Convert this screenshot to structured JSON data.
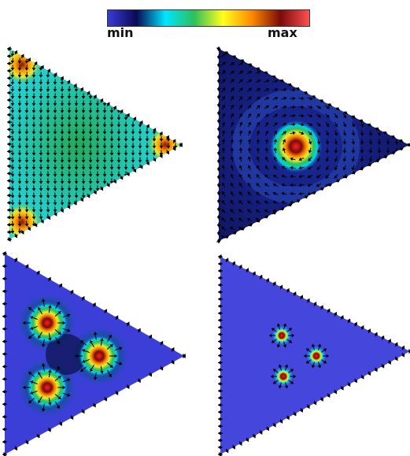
{
  "colorbar": {
    "min_label": "min",
    "max_label": "max",
    "stops": [
      "#3a3ad8",
      "#0a0a55",
      "#00e5ff",
      "#2fbf5a",
      "#ffff1e",
      "#ff8a00",
      "#7a0a0a",
      "#ff5050"
    ]
  },
  "panels": [
    {
      "id": "p1",
      "background": "#2ad3e0",
      "vortices": "three-corner",
      "field": "uniform-vertical-arrows"
    },
    {
      "id": "p2",
      "background": "#151870",
      "vortices": "single-central",
      "field": "swirl-arrows"
    },
    {
      "id": "p3",
      "background": "#3b3fd8",
      "vortices": "three-lobes",
      "field": "edge-arrows"
    },
    {
      "id": "p4",
      "background": "#4547dc",
      "vortices": "three-small",
      "field": "edge-arrows"
    }
  ]
}
